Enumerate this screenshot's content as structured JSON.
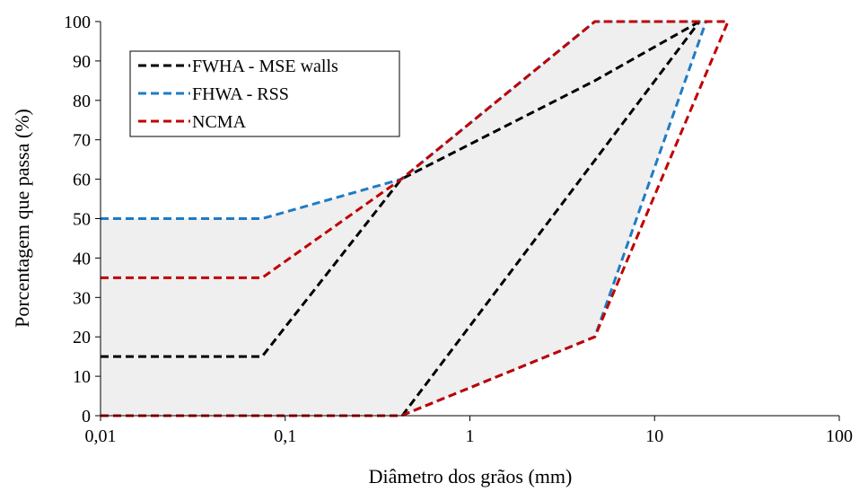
{
  "chart_data": {
    "type": "line",
    "title": "",
    "xlabel": "Diâmetro dos grãos (mm)",
    "ylabel": "Porcentagem que passa (%)",
    "x_scale": "log",
    "xlim": [
      0.01,
      100
    ],
    "ylim": [
      0,
      100
    ],
    "x_ticks": [
      0.01,
      0.1,
      1,
      10,
      100
    ],
    "x_tick_labels": [
      "0,01",
      "0,1",
      "1",
      "10",
      "100"
    ],
    "y_ticks": [
      0,
      10,
      20,
      30,
      40,
      50,
      60,
      70,
      80,
      90,
      100
    ],
    "y_tick_labels": [
      "0",
      "10",
      "20",
      "30",
      "40",
      "50",
      "60",
      "70",
      "80",
      "90",
      "100"
    ],
    "grid": false,
    "legend_position": "top-left",
    "shaded_envelope": {
      "color": "#efefef",
      "points": [
        [
          0.01,
          0
        ],
        [
          0.01,
          50
        ],
        [
          0.075,
          50
        ],
        [
          0.425,
          60
        ],
        [
          4.75,
          100
        ],
        [
          25,
          100
        ],
        [
          19,
          100
        ],
        [
          4.75,
          20
        ],
        [
          0.425,
          0
        ]
      ]
    },
    "series": [
      {
        "name": "FWHA - MSE walls",
        "color": "#000000",
        "lines": [
          [
            [
              0.01,
              15
            ],
            [
              0.075,
              15
            ],
            [
              0.425,
              60
            ],
            [
              4.75,
              85
            ],
            [
              17.5,
              100
            ]
          ],
          [
            [
              0.43,
              0
            ],
            [
              17.5,
              100
            ]
          ]
        ]
      },
      {
        "name": "FHWA - RSS",
        "color": "#1f7bc4",
        "lines": [
          [
            [
              0.01,
              50
            ],
            [
              0.075,
              50
            ],
            [
              0.425,
              60
            ],
            [
              4.75,
              100
            ],
            [
              19,
              100
            ]
          ],
          [
            [
              0.01,
              0
            ],
            [
              0.425,
              0
            ],
            [
              4.75,
              20
            ],
            [
              19,
              100
            ]
          ]
        ]
      },
      {
        "name": "NCMA",
        "color": "#c00000",
        "lines": [
          [
            [
              0.01,
              35
            ],
            [
              0.075,
              35
            ],
            [
              0.425,
              60
            ],
            [
              4.75,
              100
            ],
            [
              25,
              100
            ]
          ],
          [
            [
              0.01,
              0
            ],
            [
              0.425,
              0
            ],
            [
              4.75,
              20
            ],
            [
              25,
              100
            ]
          ]
        ]
      }
    ]
  }
}
